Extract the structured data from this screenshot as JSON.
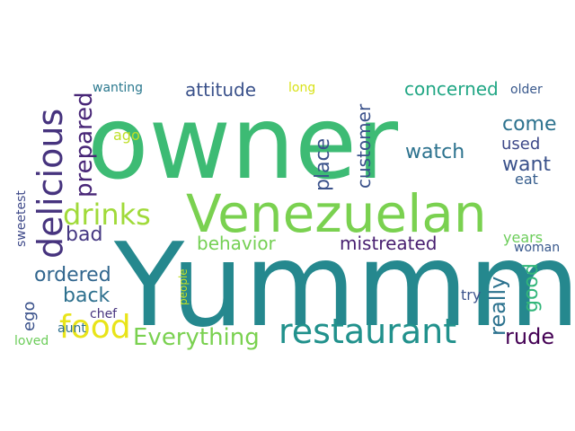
{
  "words": [
    {
      "text": "owner",
      "color": "#3dbb74"
    },
    {
      "text": "Yummm",
      "color": "#25888e"
    },
    {
      "text": "Venezuelan",
      "color": "#7ad150"
    },
    {
      "text": "restaurant",
      "color": "#21918c"
    },
    {
      "text": "delicious",
      "color": "#46337e"
    },
    {
      "text": "drinks",
      "color": "#a0da39"
    },
    {
      "text": "food",
      "color": "#e8e419"
    },
    {
      "text": "Everything",
      "color": "#7ad150"
    },
    {
      "text": "prepared",
      "color": "#482677"
    },
    {
      "text": "ordered",
      "color": "#31668e"
    },
    {
      "text": "back",
      "color": "#2d708e"
    },
    {
      "text": "bad",
      "color": "#453882"
    },
    {
      "text": "attitude",
      "color": "#3b528b"
    },
    {
      "text": "behavior",
      "color": "#75d054"
    },
    {
      "text": "mistreated",
      "color": "#481f70"
    },
    {
      "text": "concerned",
      "color": "#22a785"
    },
    {
      "text": "come",
      "color": "#2c728e"
    },
    {
      "text": "want",
      "color": "#3b528b"
    },
    {
      "text": "used",
      "color": "#3e4989"
    },
    {
      "text": "eat",
      "color": "#365d8d"
    },
    {
      "text": "watch",
      "color": "#2c728e"
    },
    {
      "text": "place",
      "color": "#3b528b"
    },
    {
      "text": "customer",
      "color": "#3b528b"
    },
    {
      "text": "really",
      "color": "#2c728e"
    },
    {
      "text": "good",
      "color": "#32b67a"
    },
    {
      "text": "rude",
      "color": "#440154"
    },
    {
      "text": "years",
      "color": "#6ccd5a"
    },
    {
      "text": "woman",
      "color": "#38588c"
    },
    {
      "text": "try",
      "color": "#3b528b"
    },
    {
      "text": "ego",
      "color": "#3b528b"
    },
    {
      "text": "chef",
      "color": "#46337e"
    },
    {
      "text": "aunt",
      "color": "#2d708e"
    },
    {
      "text": "loved",
      "color": "#6ccd5a"
    },
    {
      "text": "sweetest",
      "color": "#3e4989"
    },
    {
      "text": "people",
      "color": "#c2df23"
    },
    {
      "text": "ago",
      "color": "#bddf26"
    },
    {
      "text": "long",
      "color": "#d8e219"
    },
    {
      "text": "wanting",
      "color": "#2a788e"
    },
    {
      "text": "older",
      "color": "#38588c"
    }
  ]
}
